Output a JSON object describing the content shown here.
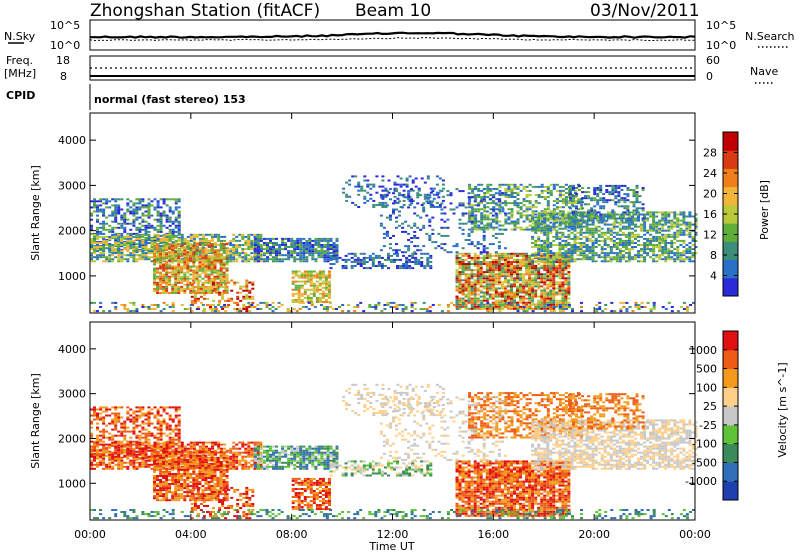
{
  "header": {
    "title": "Zhongshan Station (fitACF)",
    "beam": "Beam 10",
    "date": "03/Nov/2011"
  },
  "sky_panel": {
    "left_label": "N.Sky",
    "right_label": "N.Search",
    "y_ticks_left": [
      "10^5",
      "10^0"
    ],
    "y_ticks_right": [
      "10^5",
      "10^0"
    ]
  },
  "freq_panel": {
    "left_label_1": "Freq.",
    "left_label_2": "[MHz]",
    "right_label": "Nave",
    "y_ticks_left": [
      "18",
      "8"
    ],
    "y_ticks_right": [
      "60",
      "0"
    ]
  },
  "cpid": {
    "label": "CPID",
    "value": "normal (fast stereo) 153"
  },
  "x_axis": {
    "label": "Time UT",
    "ticks": [
      "00:00",
      "04:00",
      "08:00",
      "12:00",
      "16:00",
      "20:00",
      "00:00"
    ]
  },
  "colors": {
    "power": [
      "#2a2ad8",
      "#2a6fc8",
      "#3c8e7a",
      "#5fae3a",
      "#b9c93a",
      "#f2b53a",
      "#ef7f1a",
      "#d83a12",
      "#c00000"
    ],
    "velocity": [
      "#1f3fb0",
      "#2f6fb8",
      "#3a8a5a",
      "#5fc33a",
      "#c8c8c8",
      "#ffd08a",
      "#f39a1c",
      "#ef5a14",
      "#e01010"
    ]
  },
  "chart_data": [
    {
      "type": "heatmap",
      "name": "power",
      "ylabel": "Slant Range [km]",
      "y_ticks": [
        1000,
        2000,
        3000,
        4000
      ],
      "ylim": [
        180,
        4600
      ],
      "x_ticks": [
        "00:00",
        "04:00",
        "08:00",
        "12:00",
        "16:00",
        "20:00",
        "00:00"
      ],
      "colorbar": {
        "label": "Power [dB]",
        "ticks": [
          4,
          8,
          12,
          16,
          20,
          24,
          28
        ]
      },
      "grid": false
    },
    {
      "type": "heatmap",
      "name": "velocity",
      "ylabel": "Slant Range [km]",
      "y_ticks": [
        1000,
        2000,
        3000,
        4000
      ],
      "ylim": [
        180,
        4600
      ],
      "x_ticks": [
        "00:00",
        "04:00",
        "08:00",
        "12:00",
        "16:00",
        "20:00",
        "00:00"
      ],
      "colorbar": {
        "label": "Velocity [m s^-1]",
        "ticks": [
          1000,
          500,
          100,
          25,
          -25,
          -100,
          -500,
          -1000
        ]
      },
      "grid": false
    }
  ]
}
